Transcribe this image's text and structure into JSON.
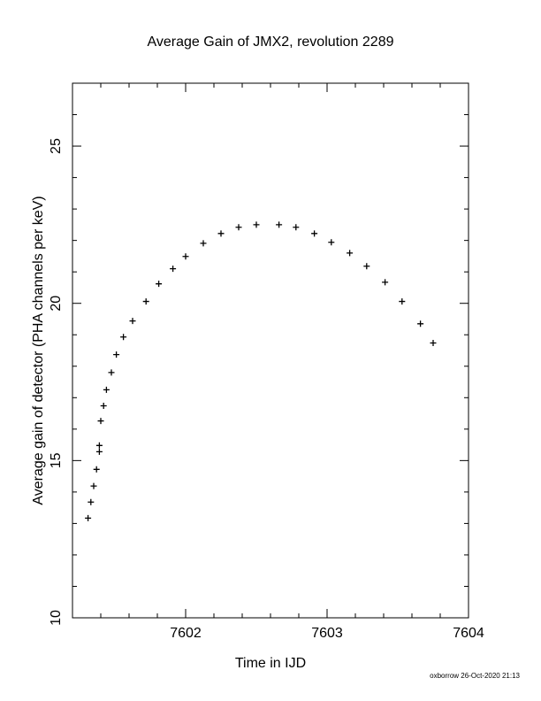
{
  "chart_data": {
    "type": "scatter",
    "title": "Average Gain of JMX2, revolution 2289",
    "x_label": "Time in IJD",
    "y_label": "Average gain of detector (PHA channels per keV)",
    "annotation": "oxborrow 26-Oct-2020 21:13",
    "marker": "+",
    "color": "#000000",
    "xlim": [
      7601.2,
      7604
    ],
    "ylim": [
      10,
      27
    ],
    "xticks": [
      7602,
      7603,
      7604
    ],
    "yticks": [
      10,
      15,
      20,
      25
    ],
    "xminorticks": [
      7601.4,
      7601.6,
      7601.8,
      7602.2,
      7602.4,
      7602.6,
      7602.8,
      7603.2,
      7603.4,
      7603.6,
      7603.8
    ],
    "yminorticks": [
      11,
      12,
      13,
      14,
      16,
      17,
      18,
      19,
      21,
      22,
      23,
      24,
      26
    ],
    "x": [
      7601.31,
      7601.33,
      7601.35,
      7601.37,
      7601.39,
      7601.39,
      7601.4,
      7601.42,
      7601.44,
      7601.475,
      7601.51,
      7601.56,
      7601.625,
      7601.72,
      7601.81,
      7601.91,
      7602.0,
      7602.125,
      7602.25,
      7602.375,
      7602.5,
      7602.66,
      7602.78,
      7602.91,
      7603.03,
      7603.16,
      7603.28,
      7603.41,
      7603.53,
      7603.66,
      7603.75
    ],
    "y": [
      13.17,
      13.68,
      14.19,
      14.72,
      15.28,
      15.48,
      16.26,
      16.74,
      17.25,
      17.8,
      18.37,
      18.93,
      19.44,
      20.06,
      20.62,
      21.1,
      21.49,
      21.91,
      22.22,
      22.42,
      22.5,
      22.5,
      22.42,
      22.22,
      21.94,
      21.6,
      21.18,
      20.67,
      20.06,
      19.35,
      18.74
    ]
  }
}
